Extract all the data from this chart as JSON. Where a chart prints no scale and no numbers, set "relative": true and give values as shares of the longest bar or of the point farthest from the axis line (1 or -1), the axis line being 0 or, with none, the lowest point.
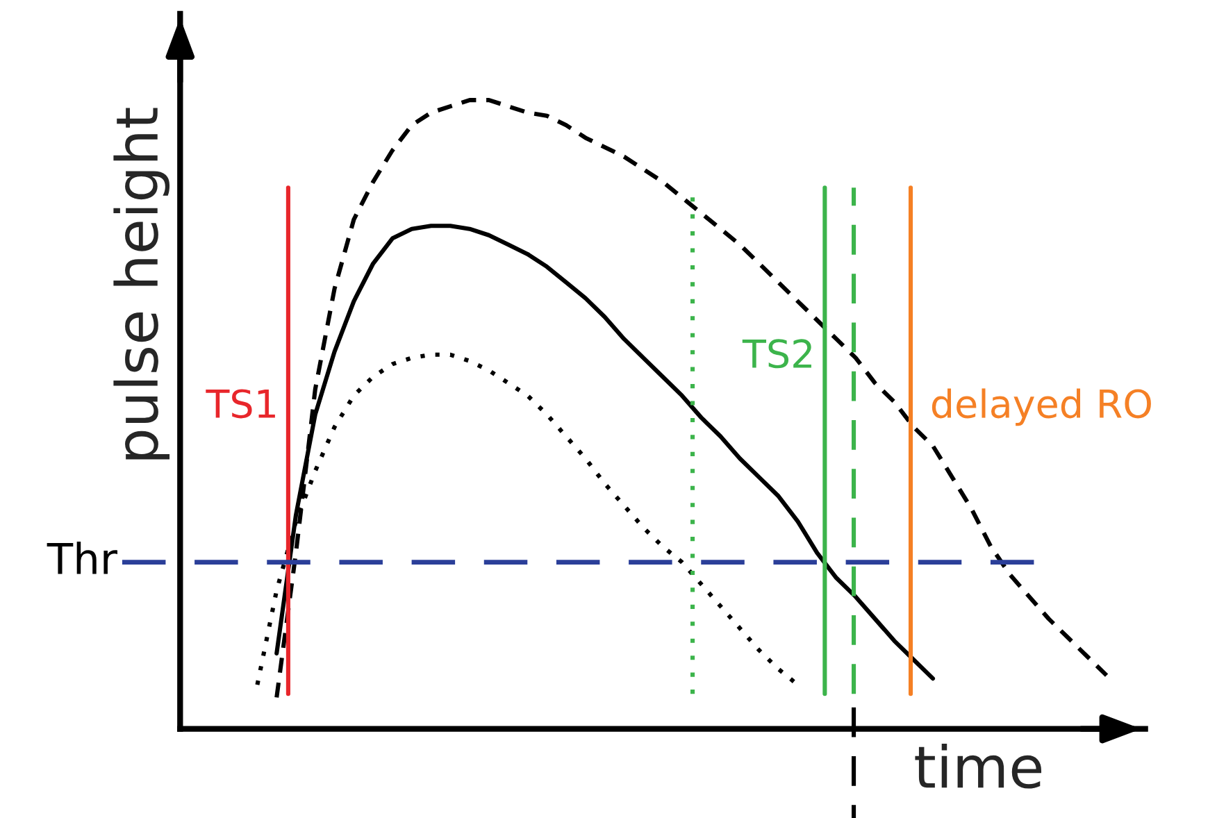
{
  "chart_data": {
    "type": "line",
    "relative": true,
    "xlabel": "time",
    "ylabel": "pulse height",
    "legend": false,
    "categories": [
      null,
      null,
      null,
      null,
      null,
      null,
      null,
      null,
      null,
      null,
      null,
      null,
      null,
      null,
      null,
      null,
      null,
      null,
      null,
      null,
      null,
      null,
      null,
      null,
      null,
      null,
      null,
      null,
      null,
      null,
      null,
      null,
      null,
      null,
      null,
      null,
      null,
      null,
      null,
      null,
      null,
      null,
      null,
      null,
      null
    ],
    "series": [
      {
        "color": "#000000",
        "line_style": "dashed",
        "values": [
          null,
          0.05,
          0.28,
          0.54,
          0.7,
          0.81,
          0.87,
          0.92,
          0.96,
          0.98,
          0.99,
          1.0,
          1.0,
          0.99,
          0.98,
          0.975,
          0.96,
          0.94,
          0.925,
          0.91,
          0.89,
          0.87,
          0.845,
          0.82,
          0.795,
          0.77,
          0.74,
          0.71,
          0.68,
          0.65,
          0.62,
          0.59,
          0.55,
          0.52,
          0.48,
          0.45,
          0.4,
          0.35,
          0.29,
          0.245,
          0.21,
          0.175,
          0.145,
          0.115,
          0.085
        ]
      },
      {
        "color": "#000000",
        "line_style": "solid",
        "values": [
          null,
          0.12,
          0.34,
          0.5,
          0.6,
          0.68,
          0.74,
          0.78,
          0.795,
          0.8,
          0.8,
          0.795,
          0.785,
          0.77,
          0.755,
          0.735,
          0.71,
          0.685,
          0.655,
          0.62,
          0.59,
          0.56,
          0.53,
          0.495,
          0.465,
          0.43,
          0.4,
          0.37,
          0.33,
          0.28,
          0.24,
          0.21,
          0.175,
          0.14,
          0.11,
          0.08,
          null,
          null,
          null,
          null,
          null,
          null,
          null,
          null,
          null
        ]
      },
      {
        "color": "#000000",
        "line_style": "dotted",
        "values": [
          0.07,
          0.22,
          0.33,
          0.41,
          0.48,
          0.53,
          0.56,
          0.58,
          0.59,
          0.595,
          0.595,
          0.585,
          0.57,
          0.55,
          0.53,
          0.5,
          0.465,
          0.43,
          0.39,
          0.355,
          0.32,
          0.29,
          0.265,
          0.23,
          0.195,
          0.16,
          0.125,
          0.095,
          0.07,
          null,
          null,
          null,
          null,
          null,
          null,
          null,
          null,
          null,
          null,
          null,
          null,
          null,
          null,
          null,
          null
        ]
      }
    ],
    "ref_lines": [
      {
        "axis": "y",
        "value": 0.265,
        "label": "Thr",
        "color": "#2b3f99",
        "line_style": "dashed"
      }
    ],
    "annotations": [
      "TS1",
      "TS2",
      "delayed RO"
    ]
  }
}
